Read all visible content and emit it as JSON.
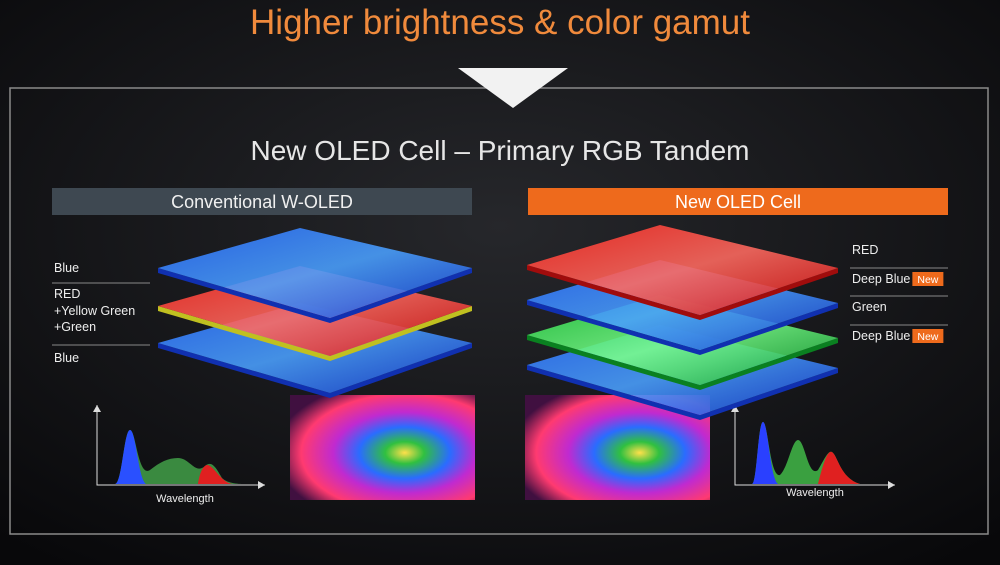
{
  "title": "Higher brightness & color gamut",
  "subtitle": "New OLED Cell – Primary RGB Tandem",
  "panels": [
    {
      "heading": "Conventional W-OLED",
      "layers": [
        {
          "lines": [
            "Blue"
          ]
        },
        {
          "lines": [
            "RED",
            "+Yellow Green",
            "+Green"
          ]
        },
        {
          "lines": [
            "Blue"
          ]
        }
      ],
      "axis_label": "Wavelength"
    },
    {
      "heading": "New OLED Cell",
      "layers": [
        {
          "lines": [
            "RED"
          ]
        },
        {
          "lines": [
            "Deep Blue"
          ],
          "badge": "New"
        },
        {
          "lines": [
            "Green"
          ]
        },
        {
          "lines": [
            "Deep Blue"
          ],
          "badge": "New"
        }
      ],
      "axis_label": "Wavelength"
    }
  ]
}
